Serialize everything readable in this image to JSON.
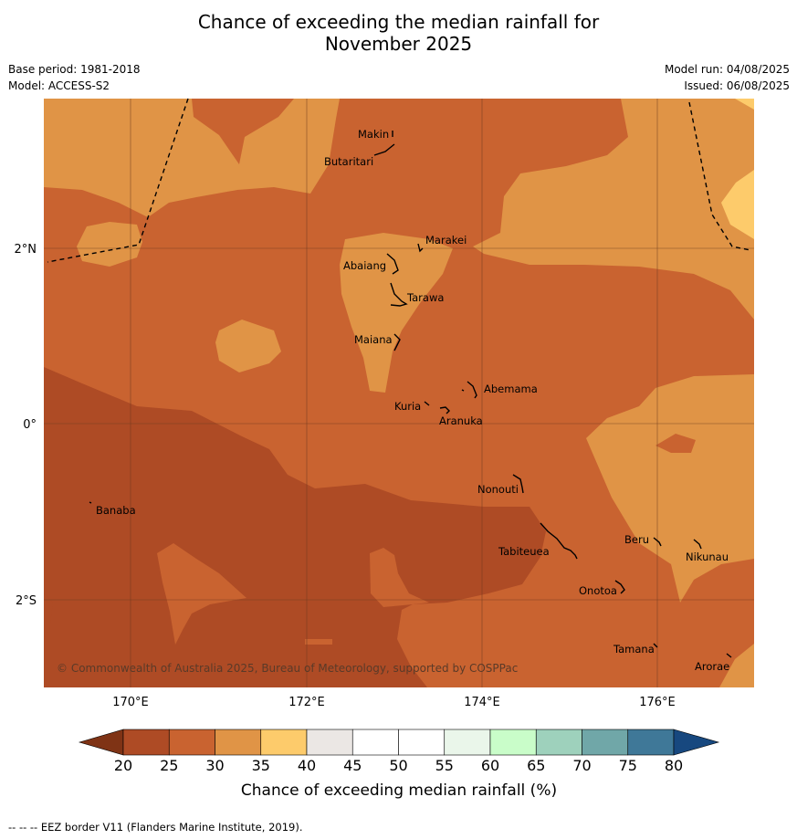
{
  "title_line1": "Chance of exceeding the median rainfall for",
  "title_line2": "November 2025",
  "base_period": "Base period: 1981-2018",
  "model": "Model: ACCESS-S2",
  "model_run": "Model run: 04/08/2025",
  "issued": "Issued: 06/08/2025",
  "map": {
    "lat_labels": [
      "2°N",
      "0°",
      "2°S"
    ],
    "lon_labels": [
      "170°E",
      "172°E",
      "174°E",
      "176°E"
    ],
    "copyright": "© Commonwealth of Australia 2025, Bureau of Meteorology, supported by COSPPac",
    "islands": [
      "Makin",
      "Butaritari",
      "Marakei",
      "Abaiang",
      "Tarawa",
      "Maiana",
      "Abemama",
      "Kuria",
      "Aranuka",
      "Banaba",
      "Nonouti",
      "Tabiteuea",
      "Beru",
      "Nikunau",
      "Onotoa",
      "Tamana",
      "Arorae"
    ]
  },
  "colorbar": {
    "ticks": [
      "20",
      "25",
      "30",
      "35",
      "40",
      "45",
      "50",
      "55",
      "60",
      "65",
      "70",
      "75",
      "80"
    ],
    "colors": [
      "#ae4b25",
      "#c96330",
      "#e09446",
      "#fdcb6b",
      "#ebe7e4",
      "#ffffff",
      "#ffffff",
      "#eaf6ea",
      "#c9fdc9",
      "#9ed1bc",
      "#70a7a8",
      "#3f7898"
    ],
    "low_color": "#7f3315",
    "high_color": "#17487f",
    "label": "Chance of exceeding median rainfall (%)"
  },
  "footer": "--  --  -- EEZ border V11 (Flanders Marine Institute, 2019)."
}
